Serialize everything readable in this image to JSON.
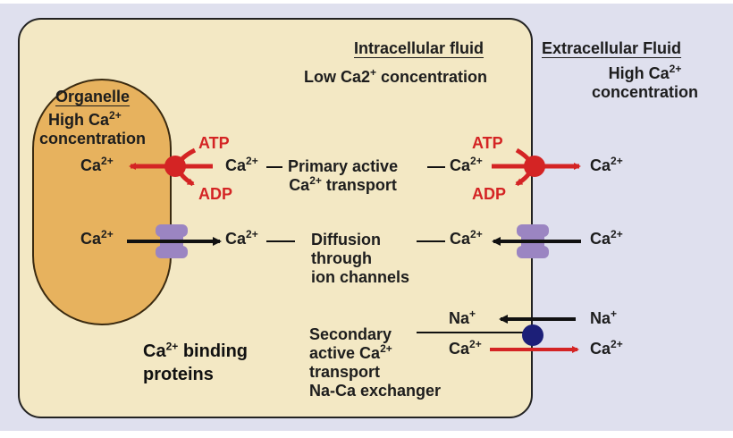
{
  "regions": {
    "intracellular_title": "Intracellular fluid",
    "intracellular_conc_prefix": "Low Ca2",
    "intracellular_conc_suffix": " concentration",
    "extracellular_title": "Extracellular Fluid",
    "extracellular_conc_line1": "High Ca",
    "extracellular_conc_line2": "concentration",
    "organelle_title": "Organelle",
    "organelle_conc_line1": "High Ca",
    "organelle_conc_line2": "concentration"
  },
  "ions": {
    "calcium": "Ca",
    "calcium_charge": "2+",
    "sodium": "Na",
    "sodium_charge": "+"
  },
  "energy": {
    "atp": "ATP",
    "adp": "ADP"
  },
  "mechanisms": {
    "primary_line1": "Primary active",
    "primary_line2_suffix": " transport",
    "diffusion_line1": "Diffusion",
    "diffusion_line2": "through",
    "diffusion_line3": "ion channels",
    "secondary_line1": "Secondary",
    "secondary_line2_prefix": "active Ca",
    "secondary_line3": "transport",
    "secondary_line4": "Na-Ca exchanger"
  },
  "binding": {
    "line1_suffix": " binding",
    "line2": "proteins"
  },
  "colors": {
    "cell_fill": "#f3e8c4",
    "organelle_fill": "#e7b25e",
    "extracellular_fill": "#dfe0ee",
    "pump_red": "#d42424",
    "channel_purple": "#9b85c2",
    "exchanger_blue": "#1c1f78"
  },
  "icons": [
    "calcium-pump-icon",
    "ion-channel-icon",
    "exchanger-icon"
  ]
}
